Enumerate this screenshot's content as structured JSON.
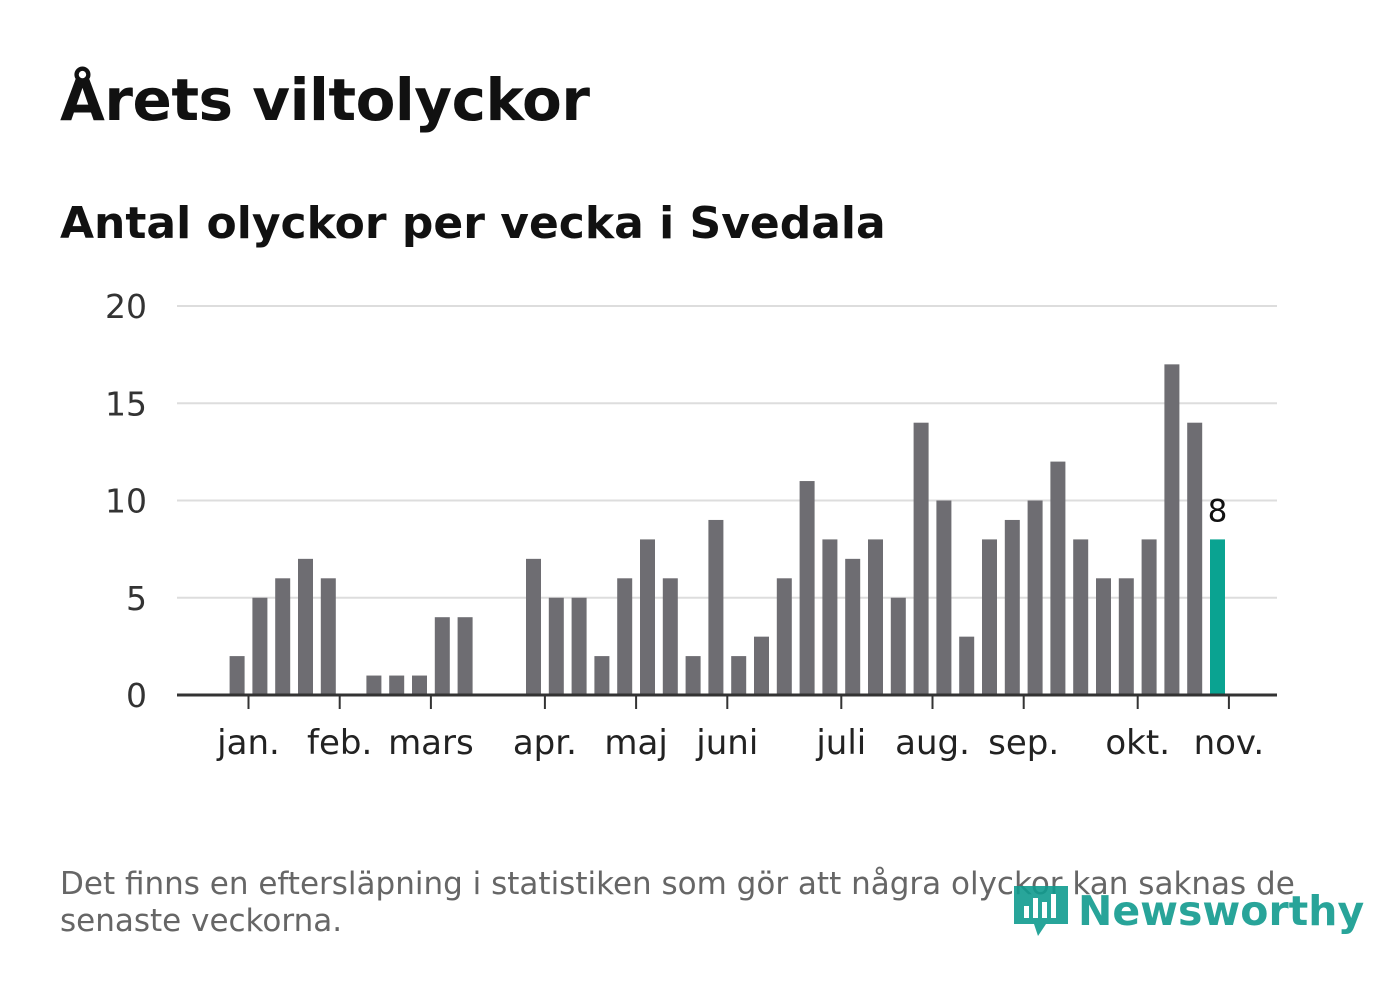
{
  "header": {
    "title": "Årets viltolyckor",
    "subtitle": "Antal olyckor per vecka i Svedala"
  },
  "footer": {
    "note": "Det finns en eftersläpning i statistiken som gör att några olyckor kan saknas de senaste veckorna.",
    "brand": "Newsworthy"
  },
  "colors": {
    "bar": "#6e6d72",
    "highlight": "#0aa391",
    "grid": "#dddddd",
    "axis": "#333333"
  },
  "chart_data": {
    "type": "bar",
    "title": "Antal olyckor per vecka i Svedala",
    "xlabel": "",
    "ylabel": "",
    "ylim": [
      0,
      20
    ],
    "yticks": [
      "0",
      "5",
      "10",
      "15",
      "20"
    ],
    "weeks": [
      1,
      2,
      3,
      4,
      5,
      6,
      7,
      8,
      9,
      10,
      11,
      12,
      13,
      14,
      15,
      16,
      17,
      18,
      19,
      20,
      21,
      22,
      23,
      24,
      25,
      26,
      27,
      28,
      29,
      30,
      31,
      32,
      33,
      34,
      35,
      36,
      37,
      38,
      39,
      40,
      41,
      42,
      43,
      44,
      45,
      46
    ],
    "values": [
      0,
      0,
      2,
      5,
      6,
      7,
      6,
      0,
      1,
      1,
      1,
      4,
      4,
      0,
      0,
      7,
      5,
      5,
      2,
      6,
      8,
      6,
      2,
      9,
      2,
      3,
      6,
      11,
      8,
      7,
      8,
      5,
      14,
      10,
      3,
      8,
      9,
      10,
      12,
      8,
      6,
      6,
      8,
      17,
      14,
      8
    ],
    "month_labels": [
      {
        "label": "jan.",
        "week": 3.5
      },
      {
        "label": "feb.",
        "week": 7.5
      },
      {
        "label": "mars",
        "week": 11.5
      },
      {
        "label": "apr.",
        "week": 16.5
      },
      {
        "label": "maj",
        "week": 20.5
      },
      {
        "label": "juni",
        "week": 24.5
      },
      {
        "label": "juli",
        "week": 29.5
      },
      {
        "label": "aug.",
        "week": 33.5
      },
      {
        "label": "sep.",
        "week": 37.5
      },
      {
        "label": "okt.",
        "week": 42.5
      },
      {
        "label": "nov.",
        "week": 46.5
      }
    ],
    "highlight": {
      "week": 46,
      "value": 8,
      "label": "8"
    }
  }
}
